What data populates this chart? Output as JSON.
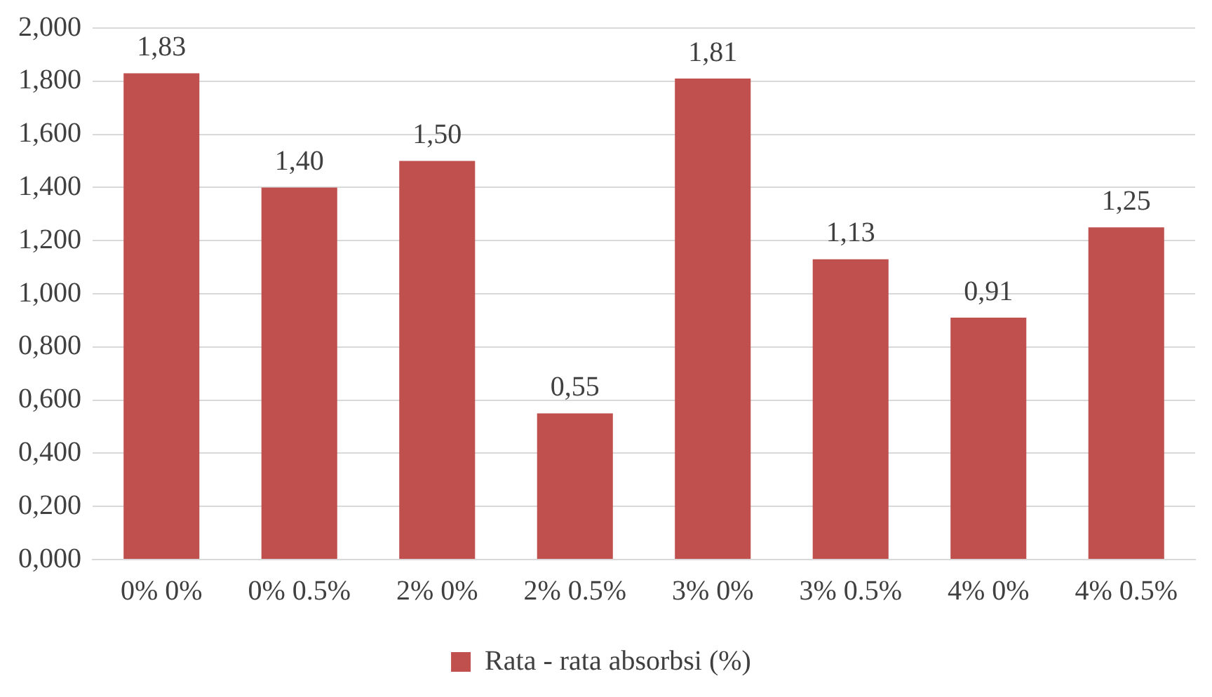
{
  "chart_data": {
    "type": "bar",
    "categories": [
      "0% 0%",
      "0% 0.5%",
      "2% 0%",
      "2% 0.5%",
      "3% 0%",
      "3% 0.5%",
      "4% 0%",
      "4% 0.5%"
    ],
    "series": [
      {
        "name": "Rata - rata absorbsi (%)",
        "color": "#c0504d",
        "values": [
          1.83,
          1.4,
          1.5,
          0.55,
          1.81,
          1.13,
          0.91,
          1.25
        ],
        "value_labels": [
          "1,83",
          "1,40",
          "1,50",
          "0,55",
          "1,81",
          "1,13",
          "0,91",
          "1,25"
        ]
      }
    ],
    "ylim": [
      0,
      2
    ],
    "yticks": [
      {
        "value": 0,
        "label": "0,000"
      },
      {
        "value": 0.2,
        "label": "0,200"
      },
      {
        "value": 0.4,
        "label": "0,400"
      },
      {
        "value": 0.6,
        "label": "0,600"
      },
      {
        "value": 0.8,
        "label": "0,800"
      },
      {
        "value": 1,
        "label": "1,000"
      },
      {
        "value": 1.2,
        "label": "1,200"
      },
      {
        "value": 1.4,
        "label": "1,400"
      },
      {
        "value": 1.6,
        "label": "1,600"
      },
      {
        "value": 1.8,
        "label": "1,800"
      },
      {
        "value": 2,
        "label": "2,000"
      }
    ],
    "grid": "y",
    "legend": "bottom"
  }
}
